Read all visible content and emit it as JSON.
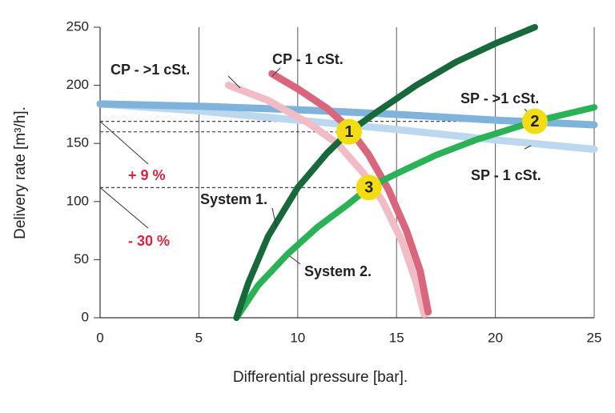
{
  "chart_data": {
    "type": "line",
    "x_label": "Differential pressure [bar].",
    "y_label": "Delivery rate [m³/h].",
    "xlim": [
      0,
      25
    ],
    "ylim": [
      0,
      250
    ],
    "xticks": [
      0,
      5,
      10,
      15,
      20,
      25
    ],
    "yticks": [
      0,
      50,
      100,
      150,
      200,
      250
    ],
    "grid": "vertical",
    "series": [
      {
        "name": "SP - >1 cSt.",
        "color": "#7fb3dc",
        "x": [
          0,
          5,
          10,
          15,
          20,
          25
        ],
        "values": [
          184,
          182,
          179,
          175,
          170,
          166
        ]
      },
      {
        "name": "SP - 1 cSt.",
        "color": "#bcd8ee",
        "x": [
          0,
          5,
          10,
          15,
          20,
          25
        ],
        "values": [
          184,
          178,
          170,
          162,
          153,
          145
        ]
      },
      {
        "name": "CP - 1 cSt.",
        "color": "#d9667c",
        "x": [
          8.7,
          10,
          11.5,
          12.6,
          13.6,
          14.6,
          15.5,
          16.2,
          16.6
        ],
        "values": [
          210,
          197,
          180,
          163,
          140,
          110,
          75,
          40,
          5
        ]
      },
      {
        "name": "CP - >1 cSt.",
        "color": "#f2bcc6",
        "x": [
          6.5,
          8.5,
          10.5,
          12,
          13.3,
          14.3,
          15.3,
          16,
          16.4
        ],
        "values": [
          200,
          187,
          168,
          150,
          125,
          100,
          65,
          30,
          3
        ]
      },
      {
        "name": "System 1.",
        "color": "#17683a",
        "x": [
          6.9,
          7.5,
          8.5,
          10,
          11.5,
          12.6,
          14,
          16,
          18,
          20,
          22
        ],
        "values": [
          0,
          30,
          70,
          112,
          142,
          160,
          177,
          200,
          220,
          236,
          250
        ]
      },
      {
        "name": "System 2.",
        "color": "#2bb257",
        "x": [
          6.9,
          8,
          9.5,
          11,
          12.5,
          13.6,
          15,
          17,
          19,
          22,
          25
        ],
        "values": [
          0,
          28,
          55,
          78,
          97,
          112,
          124,
          140,
          153,
          169,
          181
        ]
      }
    ],
    "points": [
      {
        "label": "1",
        "x": 12.6,
        "y": 160
      },
      {
        "label": "2",
        "x": 22,
        "y": 169
      },
      {
        "label": "3",
        "x": 13.6,
        "y": 112
      }
    ],
    "points_color": "#f2dc12",
    "annotations": [
      "+ 9 %",
      "- 30 %"
    ],
    "annotation_color": "#d4243f"
  }
}
